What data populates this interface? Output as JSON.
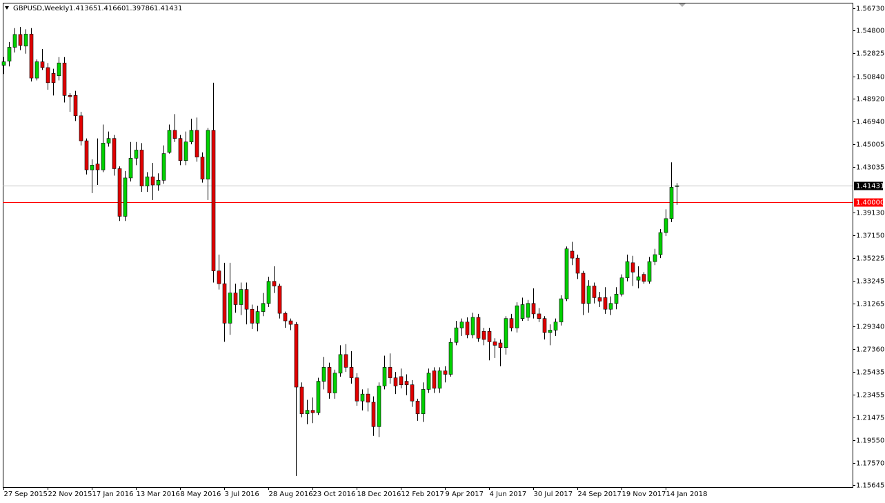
{
  "chart_data": {
    "type": "candlestick",
    "title": "GBPUSD,Weekly",
    "header_labels": [
      "1.41365",
      "1.41660",
      "1.39786",
      "1.41431"
    ],
    "categories": [
      "27 Sep 2015",
      null,
      null,
      null,
      null,
      null,
      null,
      null,
      "22 Nov 2015",
      null,
      null,
      null,
      null,
      null,
      null,
      null,
      "17 Jan 2016",
      null,
      null,
      null,
      null,
      null,
      null,
      null,
      "13 Mar 2016",
      null,
      null,
      null,
      null,
      null,
      null,
      null,
      "8 May 2016",
      null,
      null,
      null,
      null,
      null,
      null,
      null,
      "3 Jul 2016",
      null,
      null,
      null,
      null,
      null,
      null,
      null,
      "28 Aug 2016",
      null,
      null,
      null,
      null,
      null,
      null,
      null,
      "23 Oct 2016",
      null,
      null,
      null,
      null,
      null,
      null,
      null,
      "18 Dec 2016",
      null,
      null,
      null,
      null,
      null,
      null,
      null,
      "12 Feb 2017",
      null,
      null,
      null,
      null,
      null,
      null,
      null,
      "9 Apr 2017",
      null,
      null,
      null,
      null,
      null,
      null,
      null,
      "4 Jun 2017",
      null,
      null,
      null,
      null,
      null,
      null,
      null,
      "30 Jul 2017",
      null,
      null,
      null,
      null,
      null,
      null,
      null,
      "24 Sep 2017",
      null,
      null,
      null,
      null,
      null,
      null,
      null,
      "19 Nov 2017",
      null,
      null,
      null,
      null,
      null,
      null,
      null,
      "14 Jan 2018",
      null,
      null
    ],
    "open": [
      1.518,
      1.5215,
      1.5335,
      1.5445,
      1.5345,
      1.5448,
      1.507,
      1.521,
      1.516,
      1.511,
      1.509,
      1.52,
      1.492,
      1.492,
      1.4745,
      1.453,
      1.428,
      1.433,
      1.428,
      1.451,
      1.455,
      1.429,
      1.388,
      1.421,
      1.438,
      1.445,
      1.414,
      1.422,
      1.415,
      1.419,
      1.443,
      1.462,
      1.455,
      1.436,
      1.452,
      1.462,
      1.439,
      1.42,
      1.462,
      1.341,
      1.33,
      1.296,
      1.322,
      1.312,
      1.325,
      1.308,
      1.296,
      1.306,
      1.313,
      1.332,
      1.328,
      1.3045,
      1.298,
      1.295,
      1.241,
      1.218,
      1.221,
      1.219,
      1.246,
      1.258,
      1.236,
      1.253,
      1.269,
      1.258,
      1.249,
      1.229,
      1.235,
      1.228,
      1.207,
      1.242,
      1.258,
      1.249,
      1.25,
      1.246,
      1.243,
      1.229,
      1.218,
      1.239,
      1.255,
      1.24,
      1.255,
      1.252,
      1.2795,
      1.292,
      1.297,
      1.286,
      1.301,
      1.289,
      1.289,
      1.28,
      1.279,
      1.275,
      1.3,
      1.292,
      1.3,
      1.301,
      1.313,
      1.304,
      1.3,
      1.288,
      1.29,
      1.297,
      1.317,
      1.358,
      1.352,
      1.339,
      1.313,
      1.328,
      1.318,
      1.318,
      1.308,
      1.313,
      1.321,
      1.335,
      1.348,
      1.333,
      1.338,
      1.332,
      1.349,
      1.355,
      1.374,
      1.386,
      1.41365
    ],
    "high": [
      1.525,
      1.538,
      1.55,
      1.551,
      1.549,
      1.55,
      1.523,
      1.532,
      1.52,
      1.515,
      1.525,
      1.525,
      1.494,
      1.496,
      1.478,
      1.455,
      1.437,
      1.455,
      1.467,
      1.461,
      1.458,
      1.431,
      1.427,
      1.452,
      1.452,
      1.451,
      1.426,
      1.434,
      1.425,
      1.449,
      1.467,
      1.476,
      1.458,
      1.461,
      1.472,
      1.473,
      1.443,
      1.464,
      1.503,
      1.355,
      1.348,
      1.348,
      1.33,
      1.331,
      1.331,
      1.312,
      1.311,
      1.322,
      1.336,
      1.345,
      1.33,
      1.306,
      1.3,
      1.297,
      1.245,
      1.23,
      1.232,
      1.249,
      1.267,
      1.262,
      1.256,
      1.277,
      1.278,
      1.272,
      1.253,
      1.239,
      1.24,
      1.233,
      1.245,
      1.268,
      1.27,
      1.254,
      1.257,
      1.252,
      1.247,
      1.231,
      1.245,
      1.257,
      1.258,
      1.258,
      1.259,
      1.283,
      1.298,
      1.3,
      1.301,
      1.305,
      1.304,
      1.292,
      1.292,
      1.283,
      1.282,
      1.302,
      1.304,
      1.314,
      1.318,
      1.316,
      1.326,
      1.309,
      1.302,
      1.295,
      1.3,
      1.32,
      1.362,
      1.366,
      1.355,
      1.341,
      1.333,
      1.331,
      1.323,
      1.327,
      1.319,
      1.327,
      1.338,
      1.355,
      1.354,
      1.345,
      1.34,
      1.353,
      1.36,
      1.377,
      1.394,
      1.4345,
      1.4166
    ],
    "low": [
      1.5105,
      1.517,
      1.529,
      1.531,
      1.528,
      1.504,
      1.505,
      1.514,
      1.497,
      1.492,
      1.505,
      1.486,
      1.478,
      1.47,
      1.449,
      1.424,
      1.408,
      1.415,
      1.426,
      1.448,
      1.423,
      1.384,
      1.384,
      1.418,
      1.432,
      1.409,
      1.409,
      1.402,
      1.41,
      1.416,
      1.442,
      1.452,
      1.432,
      1.432,
      1.45,
      1.435,
      1.417,
      1.402,
      1.331,
      1.325,
      1.28,
      1.286,
      1.305,
      1.303,
      1.295,
      1.291,
      1.289,
      1.302,
      1.31,
      1.322,
      1.3,
      1.292,
      1.29,
      1.1645,
      1.215,
      1.209,
      1.21,
      1.217,
      1.239,
      1.231,
      1.231,
      1.25,
      1.254,
      1.244,
      1.225,
      1.221,
      1.22,
      1.199,
      1.198,
      1.239,
      1.244,
      1.235,
      1.24,
      1.234,
      1.224,
      1.212,
      1.211,
      1.236,
      1.236,
      1.236,
      1.245,
      1.25,
      1.277,
      1.285,
      1.283,
      1.283,
      1.28,
      1.277,
      1.264,
      1.266,
      1.259,
      1.269,
      1.289,
      1.288,
      1.298,
      1.298,
      1.3,
      1.297,
      1.282,
      1.277,
      1.285,
      1.294,
      1.315,
      1.346,
      1.334,
      1.303,
      1.305,
      1.313,
      1.31,
      1.304,
      1.303,
      1.308,
      1.319,
      1.332,
      1.328,
      1.326,
      1.33,
      1.33,
      1.346,
      1.352,
      1.371,
      1.383,
      1.39786
    ],
    "close": [
      1.521,
      1.5335,
      1.5445,
      1.535,
      1.5448,
      1.507,
      1.521,
      1.516,
      1.503,
      1.503,
      1.52,
      1.492,
      1.491,
      1.4745,
      1.453,
      1.428,
      1.432,
      1.428,
      1.451,
      1.455,
      1.429,
      1.388,
      1.421,
      1.438,
      1.445,
      1.414,
      1.422,
      1.415,
      1.419,
      1.442,
      1.462,
      1.455,
      1.436,
      1.452,
      1.462,
      1.439,
      1.42,
      1.462,
      1.341,
      1.33,
      1.296,
      1.322,
      1.312,
      1.325,
      1.308,
      1.296,
      1.306,
      1.313,
      1.332,
      1.328,
      1.3045,
      1.298,
      1.295,
      1.241,
      1.218,
      1.221,
      1.219,
      1.246,
      1.258,
      1.236,
      1.253,
      1.269,
      1.258,
      1.249,
      1.229,
      1.235,
      1.228,
      1.207,
      1.242,
      1.258,
      1.249,
      1.242,
      1.243,
      1.243,
      1.229,
      1.218,
      1.239,
      1.253,
      1.24,
      1.255,
      1.252,
      1.2795,
      1.292,
      1.297,
      1.286,
      1.301,
      1.283,
      1.282,
      1.28,
      1.277,
      1.275,
      1.3,
      1.292,
      1.311,
      1.312,
      1.313,
      1.304,
      1.3,
      1.288,
      1.29,
      1.297,
      1.317,
      1.36,
      1.352,
      1.339,
      1.313,
      1.328,
      1.318,
      1.315,
      1.308,
      1.313,
      1.321,
      1.335,
      1.349,
      1.34,
      1.336,
      1.332,
      1.349,
      1.355,
      1.374,
      1.386,
      1.413,
      1.41431
    ],
    "up_color": "#00d000",
    "down_color": "#e00000",
    "ylim": [
      1.1549,
      1.5718
    ],
    "yticks": [
      {
        "value": 1.5673,
        "label": "1.56730"
      },
      {
        "value": 1.548,
        "label": "1.54800"
      },
      {
        "value": 1.52825,
        "label": "1.52825"
      },
      {
        "value": 1.5084,
        "label": "1.50840"
      },
      {
        "value": 1.4892,
        "label": "1.48920"
      },
      {
        "value": 1.4694,
        "label": "1.46940"
      },
      {
        "value": 1.45005,
        "label": "1.45005"
      },
      {
        "value": 1.43035,
        "label": "1.43035"
      },
      {
        "value": 1.3913,
        "label": "1.39130"
      },
      {
        "value": 1.3715,
        "label": "1.37150"
      },
      {
        "value": 1.35225,
        "label": "1.35225"
      },
      {
        "value": 1.33245,
        "label": "1.33245"
      },
      {
        "value": 1.31265,
        "label": "1.31265"
      },
      {
        "value": 1.2934,
        "label": "1.29340"
      },
      {
        "value": 1.2736,
        "label": "1.27360"
      },
      {
        "value": 1.25435,
        "label": "1.25435"
      },
      {
        "value": 1.23455,
        "label": "1.23455"
      },
      {
        "value": 1.21475,
        "label": "1.21475"
      },
      {
        "value": 1.1955,
        "label": "1.19550"
      },
      {
        "value": 1.1757,
        "label": "1.17570"
      },
      {
        "value": 1.15645,
        "label": "1.15645"
      }
    ],
    "price_line": {
      "value": 1.41431,
      "label": "1.41431",
      "color": "#c0c0c0"
    },
    "level_line": {
      "value": 1.4,
      "label": "1.40000",
      "color": "#ff0000"
    }
  }
}
